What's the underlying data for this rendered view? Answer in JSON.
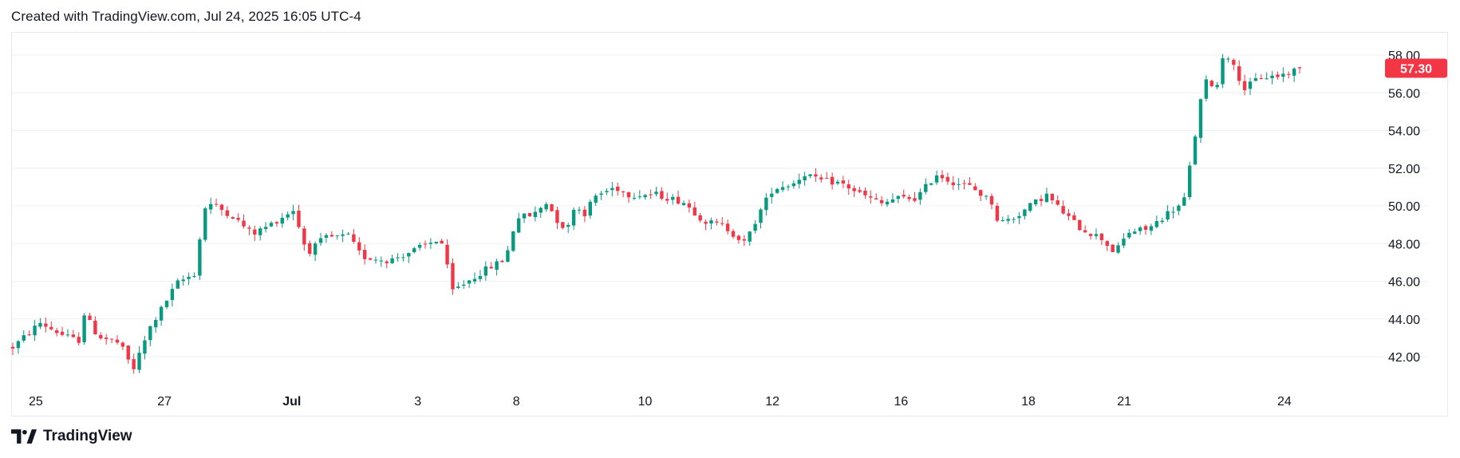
{
  "header": {
    "text": "Created with TradingView.com, Jul 24, 2025 16:05 UTC-4"
  },
  "footer": {
    "brand": "TradingView"
  },
  "colors": {
    "up": "#089981",
    "down": "#f23645",
    "last_price_bg": "#f23645",
    "grid": "#eef0f3",
    "border": "#e6e8ee"
  },
  "chart_data": {
    "type": "candlestick",
    "title": "",
    "ylim": [
      41,
      59
    ],
    "y_ticks": [
      "42.00",
      "44.00",
      "46.00",
      "48.00",
      "50.00",
      "52.00",
      "54.00",
      "56.00",
      "58.00"
    ],
    "last_price": "57.30",
    "x_ticks": [
      "25",
      "27",
      "Jul",
      "3",
      "8",
      "10",
      "12",
      "16",
      "18",
      "21",
      "24"
    ],
    "x_tick_fracs": [
      0.018,
      0.112,
      0.205,
      0.297,
      0.369,
      0.463,
      0.556,
      0.65,
      0.743,
      0.813,
      0.93
    ],
    "path": [
      [
        0,
        42.5
      ],
      [
        0.02,
        43.8
      ],
      [
        0.035,
        43.2
      ],
      [
        0.048,
        42.8
      ],
      [
        0.052,
        44.3
      ],
      [
        0.062,
        43.1
      ],
      [
        0.078,
        42.7
      ],
      [
        0.088,
        41.3
      ],
      [
        0.1,
        43.5
      ],
      [
        0.12,
        45.9
      ],
      [
        0.135,
        46.5
      ],
      [
        0.138,
        49.8
      ],
      [
        0.145,
        50.1
      ],
      [
        0.16,
        49.5
      ],
      [
        0.175,
        48.5
      ],
      [
        0.188,
        49.0
      ],
      [
        0.205,
        49.8
      ],
      [
        0.215,
        47.5
      ],
      [
        0.228,
        48.3
      ],
      [
        0.245,
        48.4
      ],
      [
        0.255,
        47.3
      ],
      [
        0.275,
        47.1
      ],
      [
        0.295,
        47.7
      ],
      [
        0.31,
        48.2
      ],
      [
        0.315,
        47.9
      ],
      [
        0.32,
        45.4
      ],
      [
        0.33,
        45.9
      ],
      [
        0.345,
        46.6
      ],
      [
        0.36,
        47.2
      ],
      [
        0.368,
        49.4
      ],
      [
        0.38,
        49.5
      ],
      [
        0.39,
        50.2
      ],
      [
        0.398,
        49.2
      ],
      [
        0.405,
        48.7
      ],
      [
        0.41,
        50.0
      ],
      [
        0.418,
        49.6
      ],
      [
        0.425,
        50.5
      ],
      [
        0.44,
        51.0
      ],
      [
        0.45,
        50.6
      ],
      [
        0.47,
        50.6
      ],
      [
        0.49,
        50.2
      ],
      [
        0.505,
        49.2
      ],
      [
        0.52,
        48.9
      ],
      [
        0.535,
        48.0
      ],
      [
        0.545,
        49.6
      ],
      [
        0.555,
        50.9
      ],
      [
        0.57,
        51.2
      ],
      [
        0.58,
        51.8
      ],
      [
        0.585,
        51.4
      ],
      [
        0.605,
        51.2
      ],
      [
        0.62,
        50.6
      ],
      [
        0.635,
        50.1
      ],
      [
        0.645,
        50.4
      ],
      [
        0.66,
        50.4
      ],
      [
        0.675,
        51.7
      ],
      [
        0.685,
        51.3
      ],
      [
        0.7,
        51.0
      ],
      [
        0.715,
        50.2
      ],
      [
        0.72,
        49.1
      ],
      [
        0.732,
        49.4
      ],
      [
        0.745,
        50.1
      ],
      [
        0.755,
        50.6
      ],
      [
        0.765,
        49.8
      ],
      [
        0.78,
        48.8
      ],
      [
        0.795,
        48.3
      ],
      [
        0.805,
        47.5
      ],
      [
        0.815,
        48.6
      ],
      [
        0.83,
        48.8
      ],
      [
        0.845,
        49.7
      ],
      [
        0.855,
        50.1
      ],
      [
        0.862,
        53.0
      ],
      [
        0.87,
        56.6
      ],
      [
        0.88,
        56.4
      ],
      [
        0.885,
        58.4
      ],
      [
        0.89,
        57.6
      ],
      [
        0.9,
        56.2
      ],
      [
        0.91,
        56.8
      ],
      [
        0.925,
        56.9
      ],
      [
        0.94,
        57.3
      ]
    ]
  }
}
